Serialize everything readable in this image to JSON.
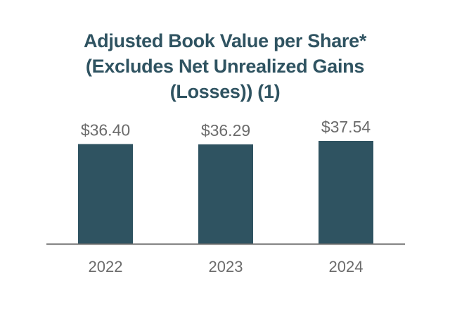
{
  "chart_data": {
    "type": "bar",
    "title_lines": [
      "Adjusted Book Value per Share*",
      "(Excludes Net Unrealized Gains",
      "(Losses)) (1)"
    ],
    "categories": [
      "2022",
      "2023",
      "2024"
    ],
    "values": [
      36.4,
      36.29,
      37.54
    ],
    "value_labels": [
      "$36.40",
      "$36.29",
      "$37.54"
    ],
    "xlabel": "",
    "ylabel": "",
    "grid": false,
    "legend": "none",
    "colors": {
      "bar": "#2f5361",
      "title": "#2f5361",
      "text": "#6b6b6b",
      "axis": "#6b6b6b"
    }
  }
}
